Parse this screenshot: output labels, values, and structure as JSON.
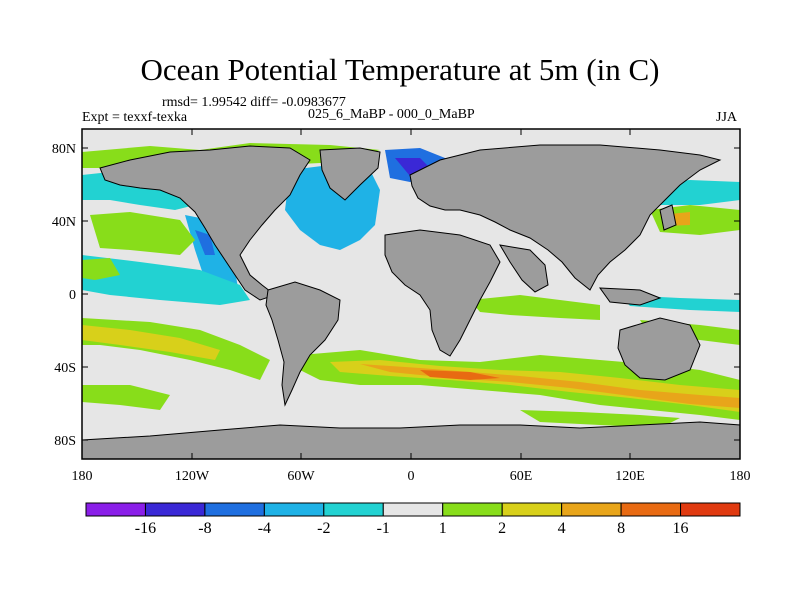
{
  "title": "Ocean Potential Temperature at 5m (in C)",
  "stats": "rmsd= 1.99542 diff= -0.0983677",
  "experiment": "Expt = texxf-texka",
  "comparison": "025_6_MaBP - 000_0_MaBP",
  "season": "JJA",
  "lon_ticks": [
    "180",
    "120W",
    "60W",
    "0",
    "60E",
    "120E",
    "180"
  ],
  "lat_ticks": [
    "80N",
    "40N",
    "0",
    "40S",
    "80S"
  ],
  "colorbar": {
    "colors": [
      "#8a1ee8",
      "#3a28d6",
      "#1f6fe0",
      "#1fb2e6",
      "#22d2d2",
      "#e6e6e6",
      "#88dd1a",
      "#d8d01a",
      "#e8a51a",
      "#e86a12",
      "#e03a10"
    ],
    "labels": [
      "-16",
      "-8",
      "-4",
      "-2",
      "-1",
      "1",
      "2",
      "4",
      "8",
      "16"
    ]
  },
  "colors": {
    "land": "#9c9c9c",
    "ocean_neutral": "#e6e6e6"
  }
}
